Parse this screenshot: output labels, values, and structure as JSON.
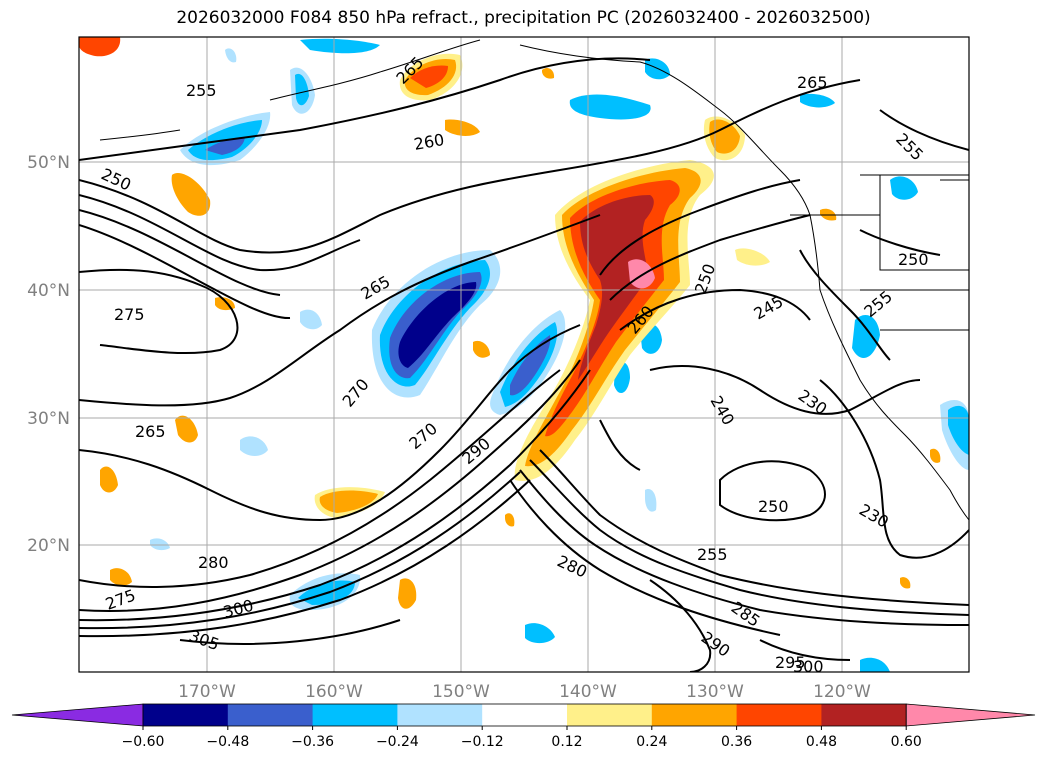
{
  "title": "2026032000 F084 850 hPa refract., precipitation PC (2026032400 - 2026032500)",
  "lat_labels": [
    "50°N",
    "40°N",
    "30°N",
    "20°N"
  ],
  "lon_labels": [
    "170°W",
    "160°W",
    "150°W",
    "140°W",
    "130°W",
    "120°W"
  ],
  "contour_labels": [
    "255",
    "260",
    "265",
    "250",
    "265",
    "275",
    "270",
    "270",
    "290",
    "260",
    "250",
    "245",
    "240",
    "230",
    "250",
    "255",
    "265",
    "230",
    "250",
    "255",
    "280",
    "275",
    "300",
    "305",
    "280",
    "290",
    "285",
    "295",
    "300",
    "265",
    "255"
  ],
  "colorbar": {
    "ticks": [
      "−0.60",
      "−0.48",
      "−0.36",
      "−0.24",
      "−0.12",
      "0.12",
      "0.24",
      "0.36",
      "0.48",
      "0.60"
    ],
    "colors": [
      "#8a2be2",
      "#00008b",
      "#3a5fcd",
      "#00bfff",
      "#b0e2ff",
      "#ffffff",
      "#fff08a",
      "#ffa500",
      "#ff4500",
      "#b22222",
      "#ff88aa"
    ]
  },
  "colors": {
    "grid": "#aaaaaa",
    "axis_label": "#808080",
    "contour": "#000000"
  }
}
